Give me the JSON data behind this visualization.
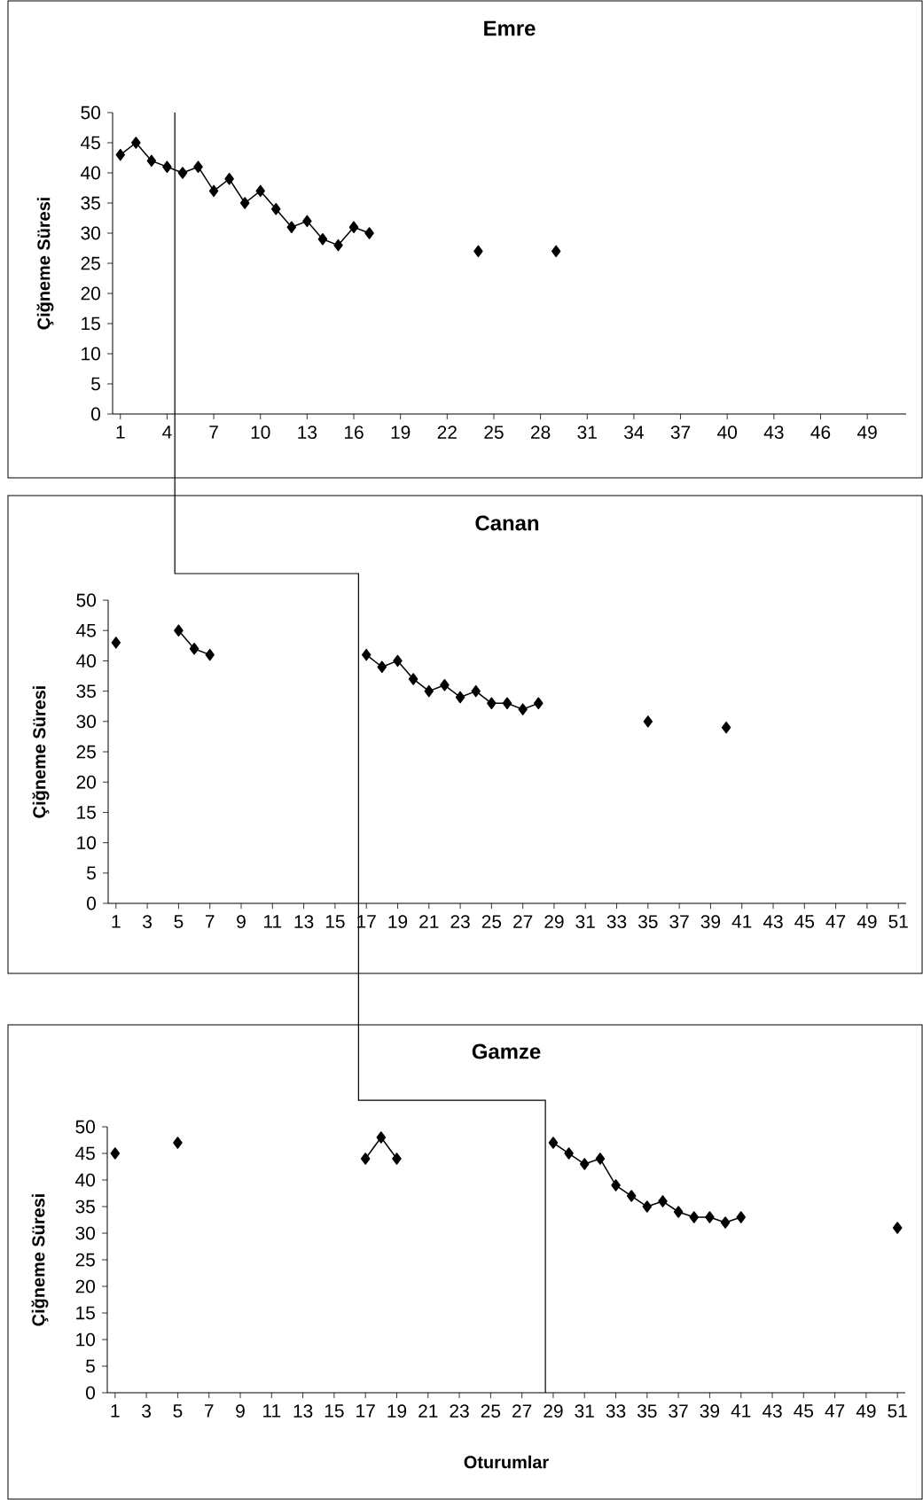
{
  "chart_data": [
    {
      "type": "line",
      "title": "Emre",
      "ylabel": "Çiğneme Süresi",
      "color": "#000000",
      "marker": "diamond",
      "line_style": "solid",
      "x": [
        1,
        2,
        3,
        4,
        5,
        6,
        7,
        8,
        9,
        10,
        11,
        12,
        13,
        14,
        15,
        16,
        17,
        18,
        24,
        25,
        29
      ],
      "values": [
        43,
        45,
        42,
        41,
        40,
        41,
        37,
        39,
        35,
        37,
        34,
        31,
        32,
        29,
        28,
        31,
        30,
        null,
        27,
        null,
        27
      ],
      "xlim": [
        0.5,
        51.5
      ],
      "xticks": [
        1,
        4,
        7,
        10,
        13,
        16,
        19,
        22,
        25,
        28,
        31,
        34,
        37,
        40,
        43,
        46,
        49
      ],
      "ylim": [
        0,
        50
      ],
      "yticks": [
        0,
        5,
        10,
        15,
        20,
        25,
        30,
        35,
        40,
        45,
        50
      ],
      "ref_lines": [
        {
          "axis": "x",
          "value": 4.5
        }
      ]
    },
    {
      "type": "line",
      "title": "Canan",
      "ylabel": "Çiğneme Süresi",
      "color": "#000000",
      "marker": "diamond",
      "line_style": "solid",
      "x": [
        1,
        2,
        5,
        6,
        7,
        8,
        17,
        18,
        19,
        20,
        21,
        22,
        23,
        24,
        25,
        26,
        27,
        28,
        29,
        35,
        36,
        40
      ],
      "values": [
        43,
        null,
        45,
        42,
        41,
        null,
        41,
        39,
        40,
        37,
        35,
        36,
        34,
        35,
        33,
        33,
        32,
        33,
        null,
        30,
        null,
        29
      ],
      "xlim": [
        0.5,
        51.5
      ],
      "xticks": [
        1,
        3,
        5,
        7,
        9,
        11,
        13,
        15,
        17,
        19,
        21,
        23,
        25,
        27,
        29,
        31,
        33,
        35,
        37,
        39,
        41,
        43,
        45,
        47,
        49,
        51
      ],
      "ylim": [
        0,
        50
      ],
      "yticks": [
        0,
        5,
        10,
        15,
        20,
        25,
        30,
        35,
        40,
        45,
        50
      ],
      "ref_lines": [
        {
          "axis": "x",
          "value": 16.5
        }
      ]
    },
    {
      "type": "line",
      "title": "Gamze",
      "ylabel": "Çiğneme Süresi",
      "xlabel": "Oturumlar",
      "color": "#000000",
      "marker": "diamond",
      "line_style": "solid",
      "x": [
        1,
        2,
        5,
        6,
        17,
        18,
        19,
        20,
        29,
        30,
        31,
        32,
        33,
        34,
        35,
        36,
        37,
        38,
        39,
        40,
        41,
        42,
        51
      ],
      "values": [
        45,
        null,
        47,
        null,
        44,
        48,
        44,
        null,
        47,
        45,
        43,
        44,
        39,
        37,
        35,
        36,
        34,
        33,
        33,
        32,
        33,
        null,
        31
      ],
      "xlim": [
        0.5,
        51.5
      ],
      "xticks": [
        1,
        3,
        5,
        7,
        9,
        11,
        13,
        15,
        17,
        19,
        21,
        23,
        25,
        27,
        29,
        31,
        33,
        35,
        37,
        39,
        41,
        43,
        45,
        47,
        49,
        51
      ],
      "ylim": [
        0,
        50
      ],
      "yticks": [
        0,
        5,
        10,
        15,
        20,
        25,
        30,
        35,
        40,
        45,
        50
      ],
      "ref_lines": [
        {
          "axis": "x",
          "value": 28.5
        }
      ]
    }
  ]
}
